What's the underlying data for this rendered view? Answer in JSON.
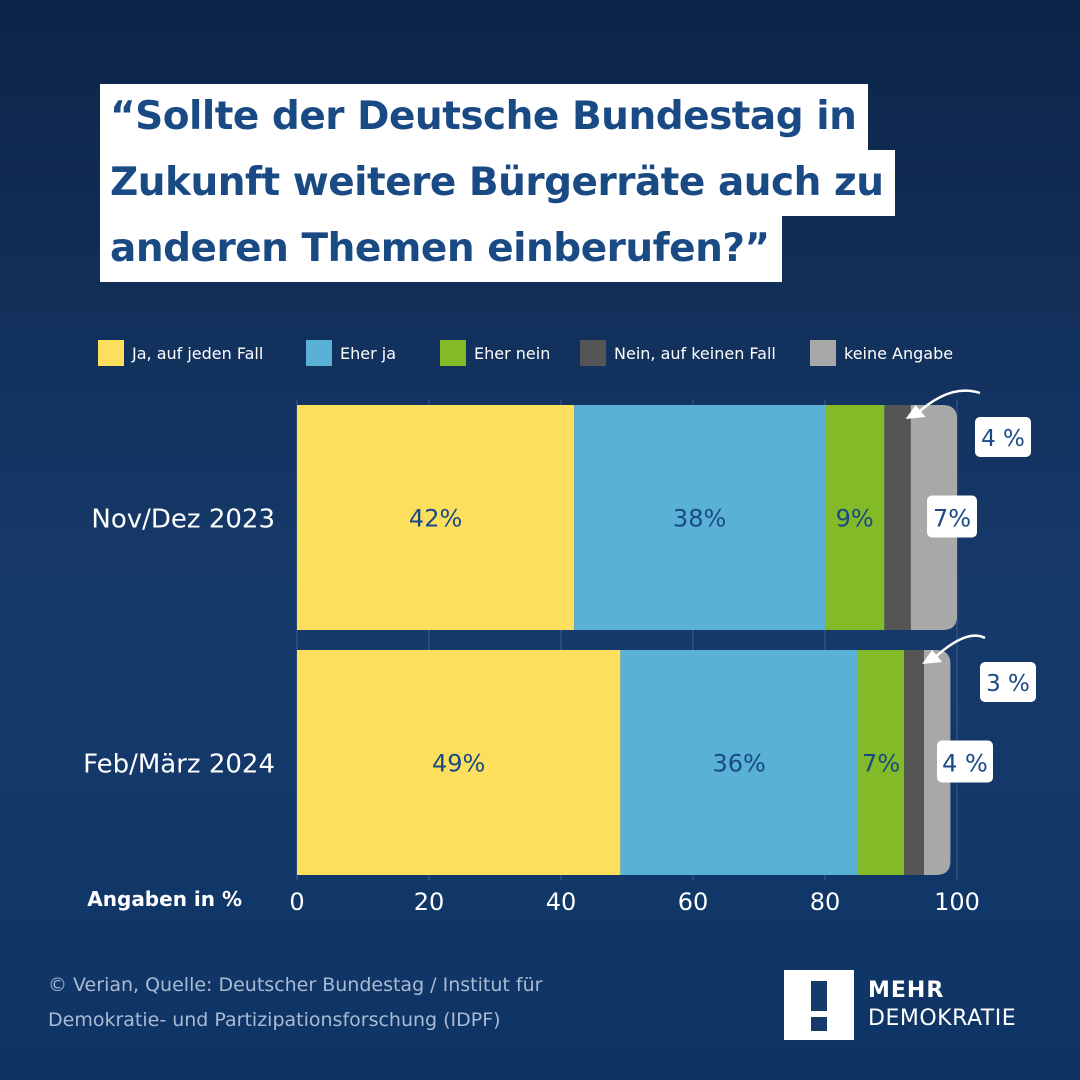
{
  "title_lines": [
    "“Sollte der Deutsche Bundestag in",
    "Zukunft weitere Bürgerräte auch zu",
    "anderen Themen einberufen?”"
  ],
  "legend": [
    {
      "label": "Ja, auf jeden Fall",
      "color": "#fddf5e"
    },
    {
      "label": "Eher ja",
      "color": "#5ab1d6"
    },
    {
      "label": "Eher nein",
      "color": "#82bb27"
    },
    {
      "label": "Nein, auf keinen Fall",
      "color": "#555555"
    },
    {
      "label": "keine Angabe",
      "color": "#a8a8a8"
    }
  ],
  "chart_data": {
    "type": "bar",
    "orientation": "horizontal",
    "stacked": true,
    "categories": [
      "Nov/Dez 2023",
      "Feb/März 2024"
    ],
    "series": [
      {
        "name": "Ja, auf jeden Fall",
        "values": [
          42,
          49
        ],
        "labels": [
          "42%",
          "49%"
        ]
      },
      {
        "name": "Eher ja",
        "values": [
          38,
          36
        ],
        "labels": [
          "38%",
          "36%"
        ]
      },
      {
        "name": "Eher nein",
        "values": [
          9,
          7
        ],
        "labels": [
          "9%",
          "7%"
        ]
      },
      {
        "name": "Nein, auf keinen Fall",
        "values": [
          4,
          3
        ],
        "labels": [
          "4 %",
          "3 %"
        ]
      },
      {
        "name": "keine Angabe",
        "values": [
          7,
          4
        ],
        "labels": [
          "7%",
          "4 %"
        ]
      }
    ],
    "xlim": [
      0,
      100
    ],
    "xticks": [
      "0",
      "20",
      "40",
      "60",
      "80",
      "100"
    ],
    "xlabel": "Angaben in %",
    "grid": true,
    "legend_position": "top"
  },
  "footer_lines": [
    "© Verian, Quelle: Deutscher Bundestag / Institut für",
    "Demokratie- und Partizipationsforschung (IDPF)"
  ],
  "logo": {
    "line1": "MEHR",
    "line2": "DEMOKRATIE"
  }
}
